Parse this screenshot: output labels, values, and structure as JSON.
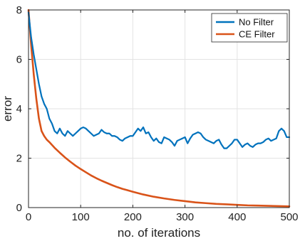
{
  "chart_data": {
    "type": "line",
    "title": "",
    "xlabel": "no. of iterations",
    "ylabel": "error",
    "xlim": [
      0,
      500
    ],
    "ylim": [
      0,
      8
    ],
    "xticks": [
      0,
      100,
      200,
      300,
      400,
      500
    ],
    "yticks": [
      0,
      2,
      4,
      6,
      8
    ],
    "grid": true,
    "legend_position": "top-right",
    "series": [
      {
        "name": "No Filter",
        "color": "#0072BD",
        "x": [
          0,
          5,
          10,
          15,
          20,
          25,
          30,
          35,
          40,
          45,
          50,
          55,
          60,
          65,
          70,
          75,
          80,
          85,
          90,
          95,
          100,
          105,
          110,
          115,
          120,
          125,
          130,
          135,
          140,
          145,
          150,
          155,
          160,
          165,
          170,
          175,
          180,
          185,
          190,
          195,
          200,
          205,
          210,
          215,
          220,
          225,
          230,
          235,
          240,
          245,
          250,
          255,
          260,
          265,
          270,
          275,
          280,
          285,
          290,
          295,
          300,
          305,
          310,
          315,
          320,
          325,
          330,
          335,
          340,
          345,
          350,
          355,
          360,
          365,
          370,
          375,
          380,
          385,
          390,
          395,
          400,
          405,
          410,
          415,
          420,
          425,
          430,
          435,
          440,
          445,
          450,
          455,
          460,
          465,
          470,
          475,
          480,
          485,
          490,
          495,
          500
        ],
        "values": [
          7.9,
          6.9,
          6.2,
          5.6,
          5.0,
          4.5,
          4.2,
          4.0,
          3.6,
          3.4,
          3.1,
          3.0,
          3.2,
          3.0,
          2.9,
          3.1,
          3.0,
          2.9,
          3.0,
          3.1,
          3.2,
          3.25,
          3.2,
          3.1,
          3.0,
          2.9,
          2.95,
          3.0,
          3.15,
          3.05,
          3.0,
          3.0,
          2.9,
          2.9,
          2.85,
          2.75,
          2.7,
          2.8,
          2.85,
          2.9,
          2.9,
          3.05,
          3.2,
          3.1,
          3.25,
          3.0,
          3.05,
          2.85,
          2.7,
          2.8,
          2.65,
          2.6,
          2.85,
          2.8,
          2.75,
          2.65,
          2.5,
          2.7,
          2.75,
          2.8,
          2.85,
          2.6,
          2.8,
          2.95,
          3.0,
          3.05,
          3.0,
          2.85,
          2.75,
          2.7,
          2.65,
          2.6,
          2.7,
          2.75,
          2.55,
          2.4,
          2.4,
          2.5,
          2.6,
          2.75,
          2.75,
          2.6,
          2.45,
          2.55,
          2.6,
          2.5,
          2.45,
          2.55,
          2.6,
          2.6,
          2.65,
          2.75,
          2.8,
          2.7,
          2.75,
          2.8,
          3.1,
          3.2,
          3.1,
          2.85,
          2.85
        ]
      },
      {
        "name": "CE Filter",
        "color": "#D95319",
        "x": [
          0,
          5,
          10,
          15,
          20,
          25,
          30,
          35,
          40,
          50,
          60,
          70,
          80,
          90,
          100,
          110,
          120,
          130,
          140,
          150,
          160,
          170,
          180,
          190,
          200,
          220,
          240,
          260,
          280,
          300,
          320,
          340,
          360,
          380,
          400,
          420,
          440,
          460,
          480,
          500
        ],
        "values": [
          8.0,
          6.6,
          5.4,
          4.4,
          3.6,
          3.1,
          2.9,
          2.75,
          2.65,
          2.42,
          2.22,
          2.03,
          1.86,
          1.7,
          1.56,
          1.43,
          1.3,
          1.19,
          1.09,
          1.0,
          0.91,
          0.83,
          0.76,
          0.7,
          0.64,
          0.53,
          0.44,
          0.37,
          0.31,
          0.26,
          0.21,
          0.18,
          0.15,
          0.13,
          0.11,
          0.09,
          0.08,
          0.07,
          0.06,
          0.05
        ]
      }
    ]
  }
}
